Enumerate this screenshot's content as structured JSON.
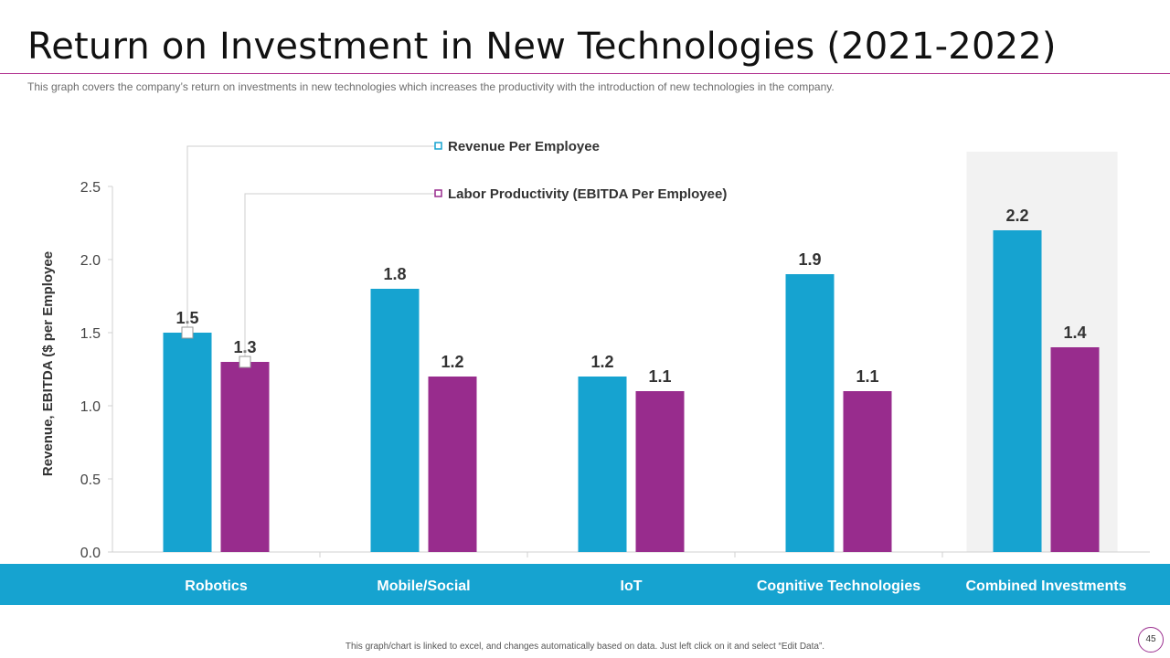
{
  "slide": {
    "title": "Return on Investment in New Technologies (2021-2022)",
    "subtitle": "This graph covers the company’s return on investments in new technologies which increases the productivity with the introduction of new technologies in the company.",
    "footer": "This graph/chart is linked to excel, and changes automatically based on data. Just left click on it and select “Edit Data”.",
    "page_number": "45"
  },
  "chart_data": {
    "type": "bar",
    "categories": [
      "Robotics",
      "Mobile/Social",
      "IoT",
      "Cognitive Technologies",
      "Combined Investments"
    ],
    "series": [
      {
        "name": "Revenue Per Employee",
        "values": [
          1.5,
          1.8,
          1.2,
          1.9,
          2.2
        ],
        "color": "#16a3d0"
      },
      {
        "name": "Labor Productivity (EBITDA Per Employee)",
        "values": [
          1.3,
          1.2,
          1.1,
          1.1,
          1.4
        ],
        "color": "#982c8d"
      }
    ],
    "ylabel": "Revenue, EBITDA ($ per Employee",
    "ylim": [
      0,
      2.5
    ],
    "yticks": [
      "0.0",
      "0.5",
      "1.0",
      "1.5",
      "2.0",
      "2.5"
    ],
    "highlighted_category": "Combined Investments",
    "highlight_color": "#f2f2f2",
    "category_band_color": "#16a3d0",
    "accent_color": "#b0308f",
    "grid": false,
    "legend": "top-center, callout lines to Robotics bars"
  }
}
